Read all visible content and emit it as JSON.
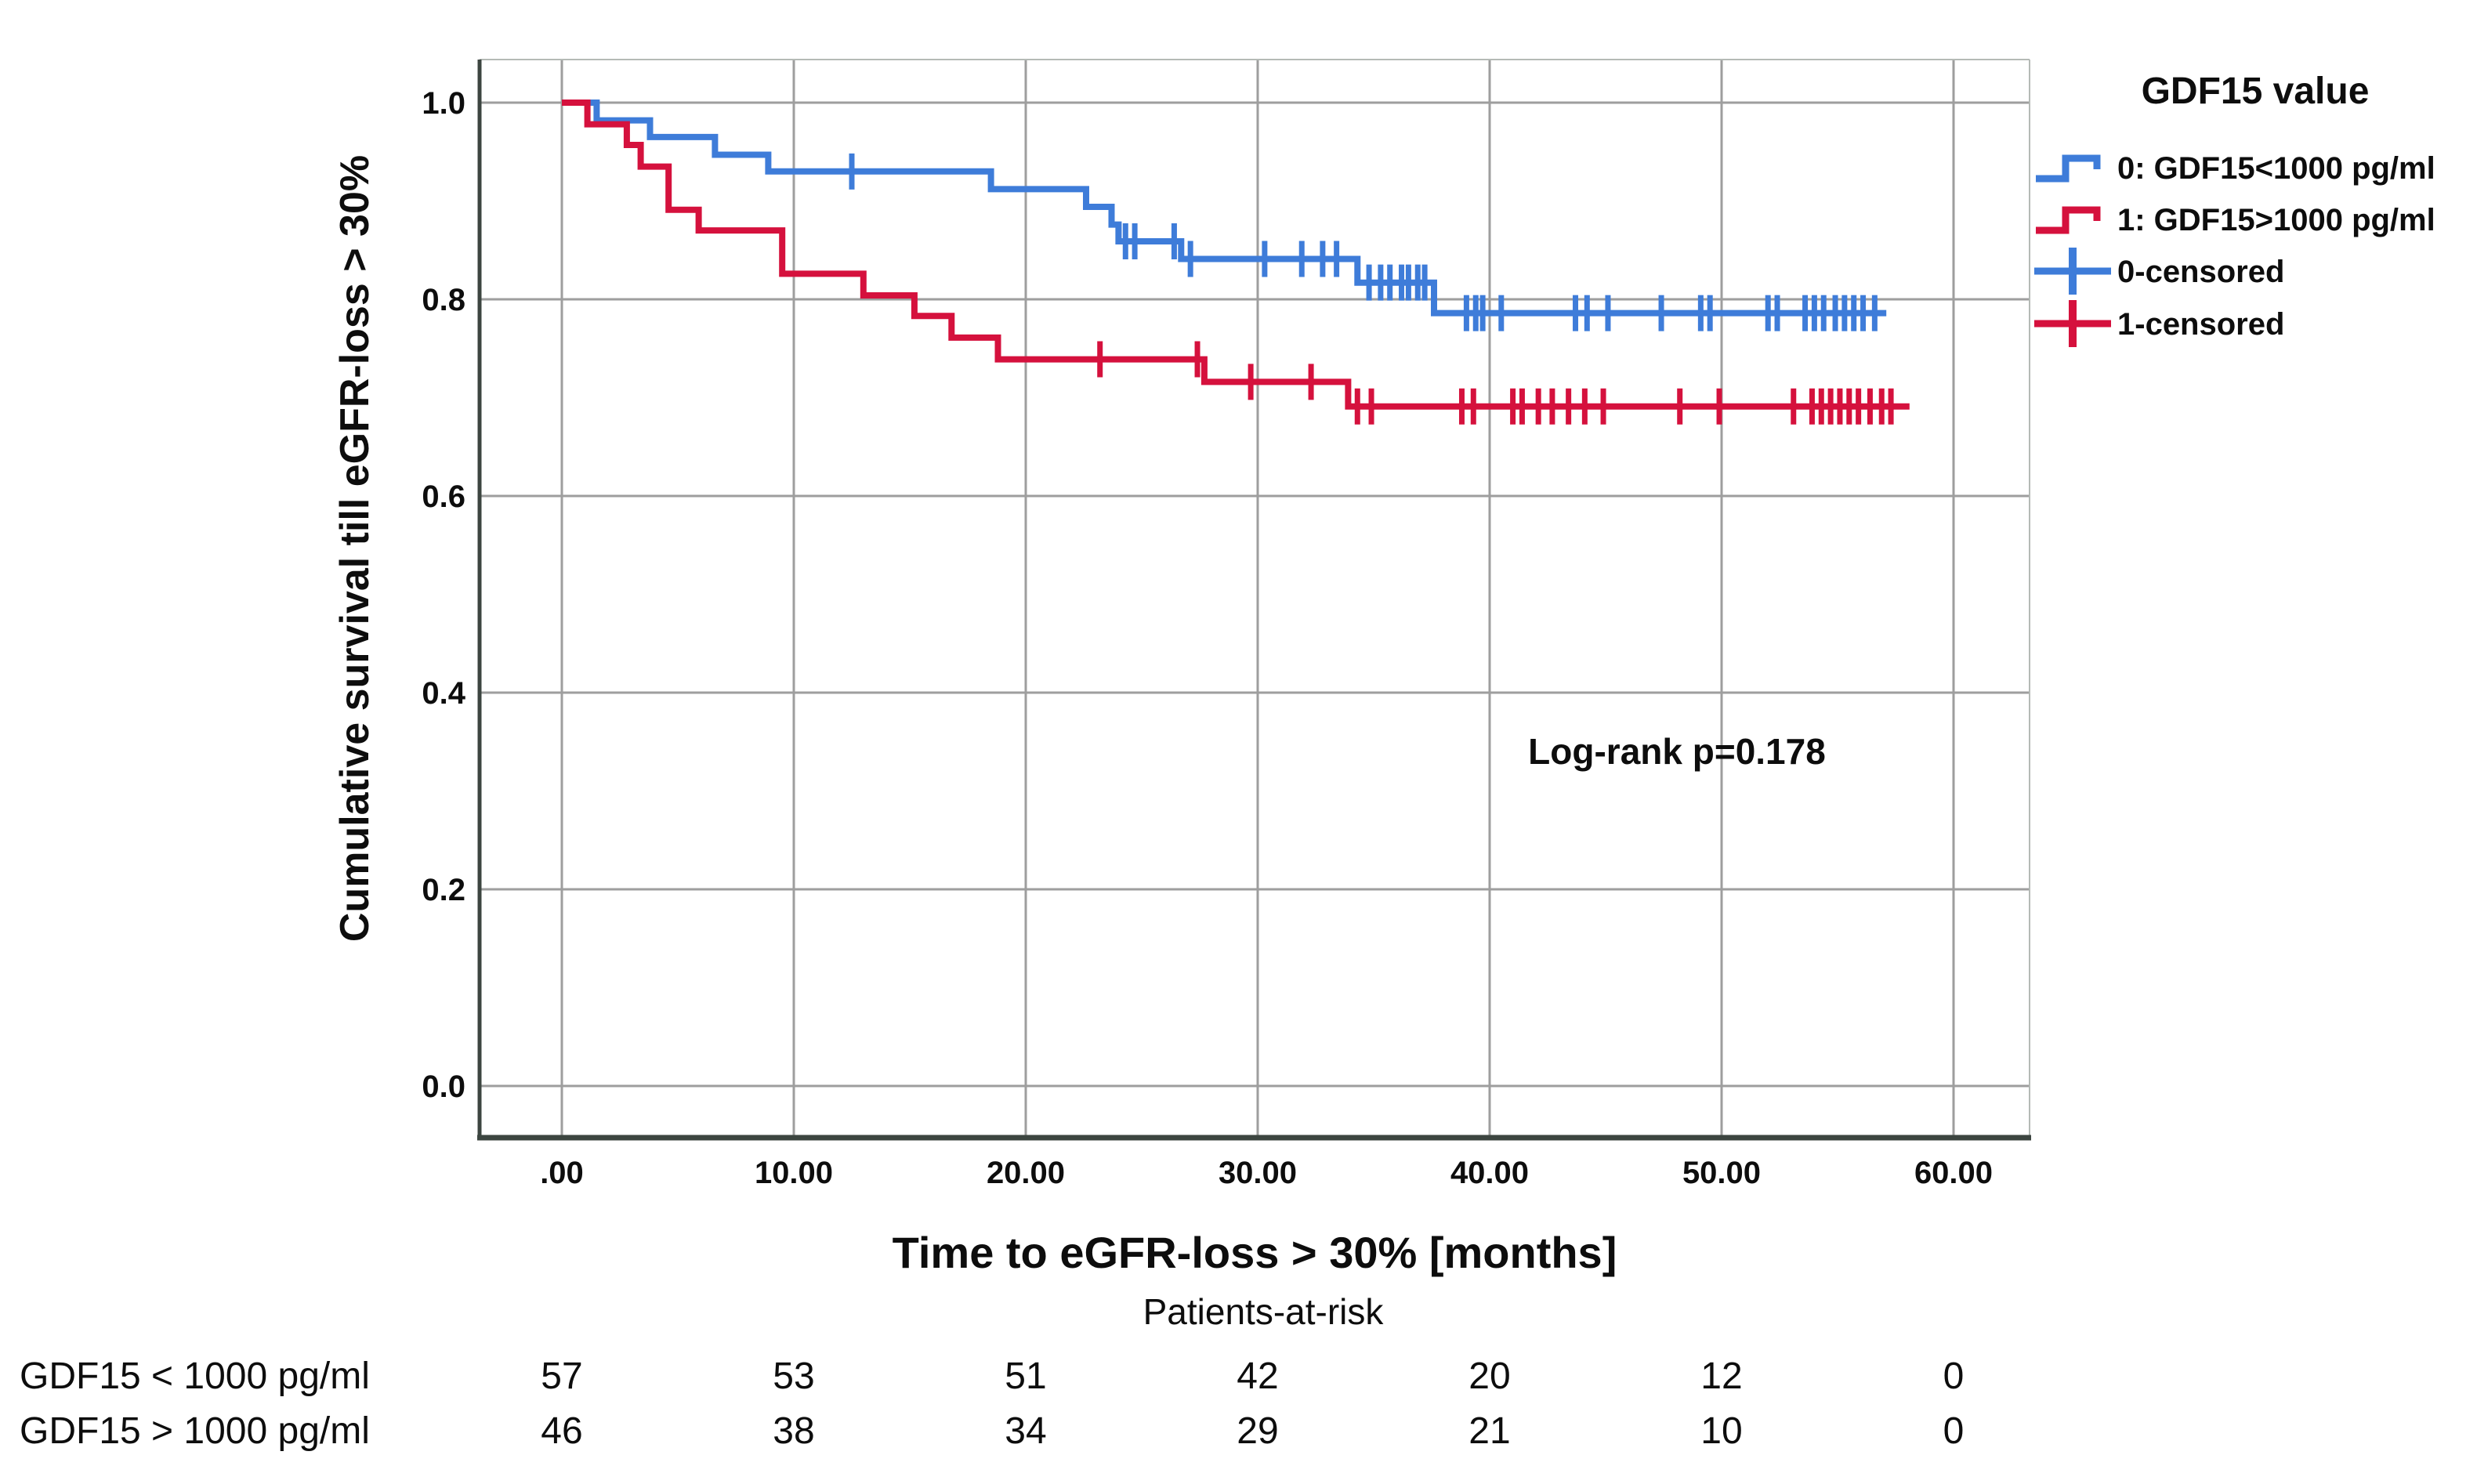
{
  "figure": {
    "y_axis_title": "Cumulative survival till eGFR-loss > 30%",
    "x_axis_title": "Time to eGFR-loss > 30% [months]",
    "annotation_text": "Log-rank p=0.178",
    "colors": {
      "group0_blue": "#3e7cd9",
      "group1_red": "#d5113d",
      "grid_gray": "#9e9e9e",
      "axis_dark": "#3c4540",
      "frame_light": "#b5bab6",
      "text_black": "#0d0d0d"
    }
  },
  "legend": {
    "title": "GDF15 value",
    "items": [
      {
        "label": "0: GDF15<1000 pg/ml",
        "symbol": "step-line",
        "color": "#3e7cd9"
      },
      {
        "label": "1: GDF15>1000 pg/ml",
        "symbol": "step-line",
        "color": "#d5113d"
      },
      {
        "label": "0-censored",
        "symbol": "plus-censor",
        "color": "#3e7cd9"
      },
      {
        "label": "1-censored",
        "symbol": "plus-censor",
        "color": "#d5113d"
      }
    ]
  },
  "chart_data": {
    "type": "line",
    "subtype": "kaplan-meier-step",
    "title": "",
    "xlabel": "Time to eGFR-loss > 30% [months]",
    "ylabel": "Cumulative survival till eGFR-loss > 30%",
    "xlim": [
      -3.5,
      63.3
    ],
    "ylim": [
      -0.053,
      1.044
    ],
    "grid": true,
    "x_ticks": [
      {
        "v": 0,
        "label": ".00"
      },
      {
        "v": 10,
        "label": "10.00"
      },
      {
        "v": 20,
        "label": "20.00"
      },
      {
        "v": 30,
        "label": "30.00"
      },
      {
        "v": 40,
        "label": "40.00"
      },
      {
        "v": 50,
        "label": "50.00"
      },
      {
        "v": 60,
        "label": "60.00"
      }
    ],
    "y_ticks": [
      {
        "v": 1.0,
        "label": "1.0"
      },
      {
        "v": 0.8,
        "label": "0.8"
      },
      {
        "v": 0.6,
        "label": "0.6"
      },
      {
        "v": 0.4,
        "label": "0.4"
      },
      {
        "v": 0.2,
        "label": "0.2"
      },
      {
        "v": 0.0,
        "label": "0.0"
      }
    ],
    "annotation": {
      "text": "Log-rank p=0.178",
      "x_month": 48.1,
      "y_survival": 0.327
    },
    "series": [
      {
        "name": "0: GDF15<1000 pg/ml",
        "group": "GDF15<1000 pg/ml",
        "color": "#3e7cd9",
        "start": [
          0,
          1.0
        ],
        "steps": [
          [
            1.5,
            0.982
          ],
          [
            3.8,
            0.965
          ],
          [
            6.6,
            0.947
          ],
          [
            8.9,
            0.93
          ],
          [
            18.5,
            0.912
          ],
          [
            22.6,
            0.894
          ],
          [
            23.7,
            0.876
          ],
          [
            24.0,
            0.859
          ],
          [
            26.7,
            0.841
          ],
          [
            34.3,
            0.817
          ],
          [
            37.6,
            0.786
          ]
        ],
        "end_month": 57.1,
        "censors": [
          [
            12.5,
            0.93
          ],
          [
            24.3,
            0.859
          ],
          [
            24.7,
            0.859
          ],
          [
            26.4,
            0.859
          ],
          [
            27.1,
            0.841
          ],
          [
            30.3,
            0.841
          ],
          [
            31.9,
            0.841
          ],
          [
            32.8,
            0.841
          ],
          [
            33.4,
            0.841
          ],
          [
            34.8,
            0.817
          ],
          [
            35.3,
            0.817
          ],
          [
            35.7,
            0.817
          ],
          [
            36.2,
            0.817
          ],
          [
            36.5,
            0.817
          ],
          [
            36.9,
            0.817
          ],
          [
            37.2,
            0.817
          ],
          [
            39.0,
            0.786
          ],
          [
            39.4,
            0.786
          ],
          [
            39.7,
            0.786
          ],
          [
            40.5,
            0.786
          ],
          [
            43.7,
            0.786
          ],
          [
            44.2,
            0.786
          ],
          [
            45.1,
            0.786
          ],
          [
            47.4,
            0.786
          ],
          [
            49.1,
            0.786
          ],
          [
            49.5,
            0.786
          ],
          [
            52.0,
            0.786
          ],
          [
            52.4,
            0.786
          ],
          [
            53.6,
            0.786
          ],
          [
            54.0,
            0.786
          ],
          [
            54.4,
            0.786
          ],
          [
            54.9,
            0.786
          ],
          [
            55.3,
            0.786
          ],
          [
            55.7,
            0.786
          ],
          [
            56.1,
            0.786
          ],
          [
            56.6,
            0.786
          ]
        ]
      },
      {
        "name": "1: GDF15>1000 pg/ml",
        "group": "GDF15>1000 pg/ml",
        "color": "#d5113d",
        "start": [
          0,
          1.0
        ],
        "steps": [
          [
            1.1,
            0.978
          ],
          [
            2.8,
            0.957
          ],
          [
            3.4,
            0.935
          ],
          [
            4.6,
            0.891
          ],
          [
            5.9,
            0.87
          ],
          [
            9.5,
            0.826
          ],
          [
            13.0,
            0.804
          ],
          [
            15.2,
            0.783
          ],
          [
            16.8,
            0.761
          ],
          [
            18.8,
            0.739
          ],
          [
            27.7,
            0.716
          ],
          [
            33.9,
            0.691
          ]
        ],
        "end_month": 58.1,
        "censors": [
          [
            23.2,
            0.739
          ],
          [
            27.4,
            0.739
          ],
          [
            29.7,
            0.716
          ],
          [
            32.3,
            0.716
          ],
          [
            34.3,
            0.691
          ],
          [
            34.9,
            0.691
          ],
          [
            38.8,
            0.691
          ],
          [
            39.3,
            0.691
          ],
          [
            41.0,
            0.691
          ],
          [
            41.4,
            0.691
          ],
          [
            42.1,
            0.691
          ],
          [
            42.7,
            0.691
          ],
          [
            43.4,
            0.691
          ],
          [
            44.1,
            0.691
          ],
          [
            44.9,
            0.691
          ],
          [
            48.2,
            0.691
          ],
          [
            49.9,
            0.691
          ],
          [
            53.1,
            0.691
          ],
          [
            53.9,
            0.691
          ],
          [
            54.3,
            0.691
          ],
          [
            54.7,
            0.691
          ],
          [
            55.1,
            0.691
          ],
          [
            55.5,
            0.691
          ],
          [
            55.9,
            0.691
          ],
          [
            56.4,
            0.691
          ],
          [
            56.9,
            0.691
          ],
          [
            57.3,
            0.691
          ]
        ]
      }
    ]
  },
  "at_risk": {
    "header": "Patients-at-risk",
    "time_points": [
      0,
      10,
      20,
      30,
      40,
      50,
      60
    ],
    "rows": [
      {
        "label": "GDF15 < 1000 pg/ml",
        "values": [
          "57",
          "53",
          "51",
          "42",
          "20",
          "12",
          "0"
        ]
      },
      {
        "label": "GDF15 > 1000 pg/ml",
        "values": [
          "46",
          "38",
          "34",
          "29",
          "21",
          "10",
          "0"
        ]
      }
    ]
  }
}
